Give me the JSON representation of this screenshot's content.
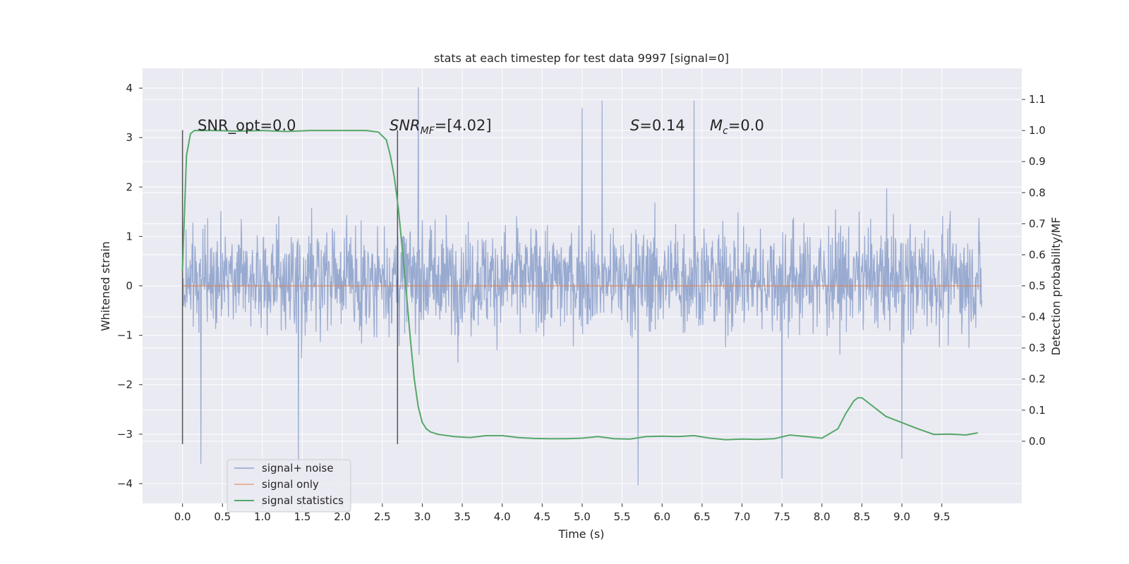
{
  "chart_data": {
    "type": "line",
    "title": "stats at each timestep for test data 9997 [signal=0]",
    "xlabel": "Time (s)",
    "ylabel_left": "Whitened strain",
    "ylabel_right": "Detection probability/MF",
    "xlim": [
      -0.5,
      10.5
    ],
    "ylim_left": [
      -4.4,
      4.4
    ],
    "ylim_right": [
      -0.2,
      1.2
    ],
    "x_ticks": [
      "0.0",
      "0.5",
      "1.0",
      "1.5",
      "2.0",
      "2.5",
      "3.0",
      "3.5",
      "4.0",
      "4.5",
      "5.0",
      "5.5",
      "6.0",
      "6.5",
      "7.0",
      "7.5",
      "8.0",
      "8.5",
      "9.0",
      "9.5"
    ],
    "y_left_ticks": [
      "4",
      "3",
      "2",
      "1",
      "0",
      "−1",
      "−2",
      "−3",
      "−4"
    ],
    "y_right_ticks": [
      "1.1",
      "1.0",
      "0.9",
      "0.8",
      "0.7",
      "0.6",
      "0.5",
      "0.4",
      "0.3",
      "0.2",
      "0.1",
      "0.0"
    ],
    "grid": true,
    "legend_placement": "lower-left",
    "colors": {
      "background": "#eaeaf2",
      "grid": "#ffffff",
      "noise": "#8fa3cc",
      "signal": "#dd8452",
      "stats": "#55a868",
      "marker": "#555555"
    },
    "series": [
      {
        "name": "signal+ noise",
        "axis": "left",
        "t_range": [
          0.0,
          10.0
        ],
        "typical_envelope": [
          -2.0,
          2.3
        ],
        "sample_peaks": [
          {
            "x": 2.95,
            "y": 4.02
          },
          {
            "x": 1.45,
            "y": -3.6
          },
          {
            "x": 0.23,
            "y": -3.6
          },
          {
            "x": 5.7,
            "y": -4.03
          },
          {
            "x": 7.5,
            "y": -3.9
          },
          {
            "x": 6.4,
            "y": 3.75
          },
          {
            "x": 5.25,
            "y": 3.75
          },
          {
            "x": 5.0,
            "y": 3.6
          },
          {
            "x": 9.0,
            "y": -3.5
          }
        ]
      },
      {
        "name": "signal only",
        "axis": "left",
        "x": [
          0.0,
          10.0
        ],
        "y": [
          0.0,
          0.0
        ]
      },
      {
        "name": "signal statistics",
        "axis": "right",
        "x": [
          0.0,
          0.05,
          0.1,
          0.15,
          0.25,
          0.4,
          0.7,
          1.0,
          1.3,
          1.6,
          2.0,
          2.3,
          2.45,
          2.55,
          2.6,
          2.65,
          2.7,
          2.75,
          2.8,
          2.85,
          2.9,
          2.95,
          3.0,
          3.05,
          3.1,
          3.2,
          3.4,
          3.6,
          3.8,
          4.0,
          4.2,
          4.4,
          4.6,
          4.8,
          5.0,
          5.2,
          5.4,
          5.6,
          5.8,
          6.0,
          6.2,
          6.4,
          6.6,
          6.8,
          7.0,
          7.2,
          7.4,
          7.6,
          7.8,
          8.0,
          8.2,
          8.3,
          8.4,
          8.45,
          8.5,
          8.6,
          8.7,
          8.8,
          9.0,
          9.2,
          9.4,
          9.6,
          9.8,
          9.95
        ],
        "y": [
          0.55,
          0.92,
          0.99,
          1.0,
          1.0,
          1.0,
          0.998,
          1.0,
          0.997,
          1.0,
          1.0,
          1.0,
          0.995,
          0.97,
          0.92,
          0.85,
          0.75,
          0.62,
          0.48,
          0.33,
          0.2,
          0.11,
          0.06,
          0.04,
          0.03,
          0.022,
          0.015,
          0.012,
          0.018,
          0.018,
          0.012,
          0.009,
          0.008,
          0.008,
          0.01,
          0.015,
          0.008,
          0.007,
          0.015,
          0.016,
          0.015,
          0.018,
          0.01,
          0.005,
          0.007,
          0.006,
          0.008,
          0.02,
          0.015,
          0.01,
          0.04,
          0.09,
          0.13,
          0.14,
          0.14,
          0.12,
          0.1,
          0.08,
          0.06,
          0.04,
          0.022,
          0.023,
          0.02,
          0.027
        ]
      }
    ],
    "markers": [
      {
        "x": 0.0,
        "label": ""
      },
      {
        "x": 2.69,
        "label": ""
      }
    ],
    "annotations": {
      "snr_opt": "SNR_opt=0.0",
      "snr_mf_prefix": "SNR",
      "snr_mf_sub": "MF",
      "snr_mf_value": "=[4.02]",
      "s_prefix": "S",
      "s_value": "=0.14",
      "mc_prefix": "M",
      "mc_sub": "c",
      "mc_value": "=0.0"
    }
  }
}
